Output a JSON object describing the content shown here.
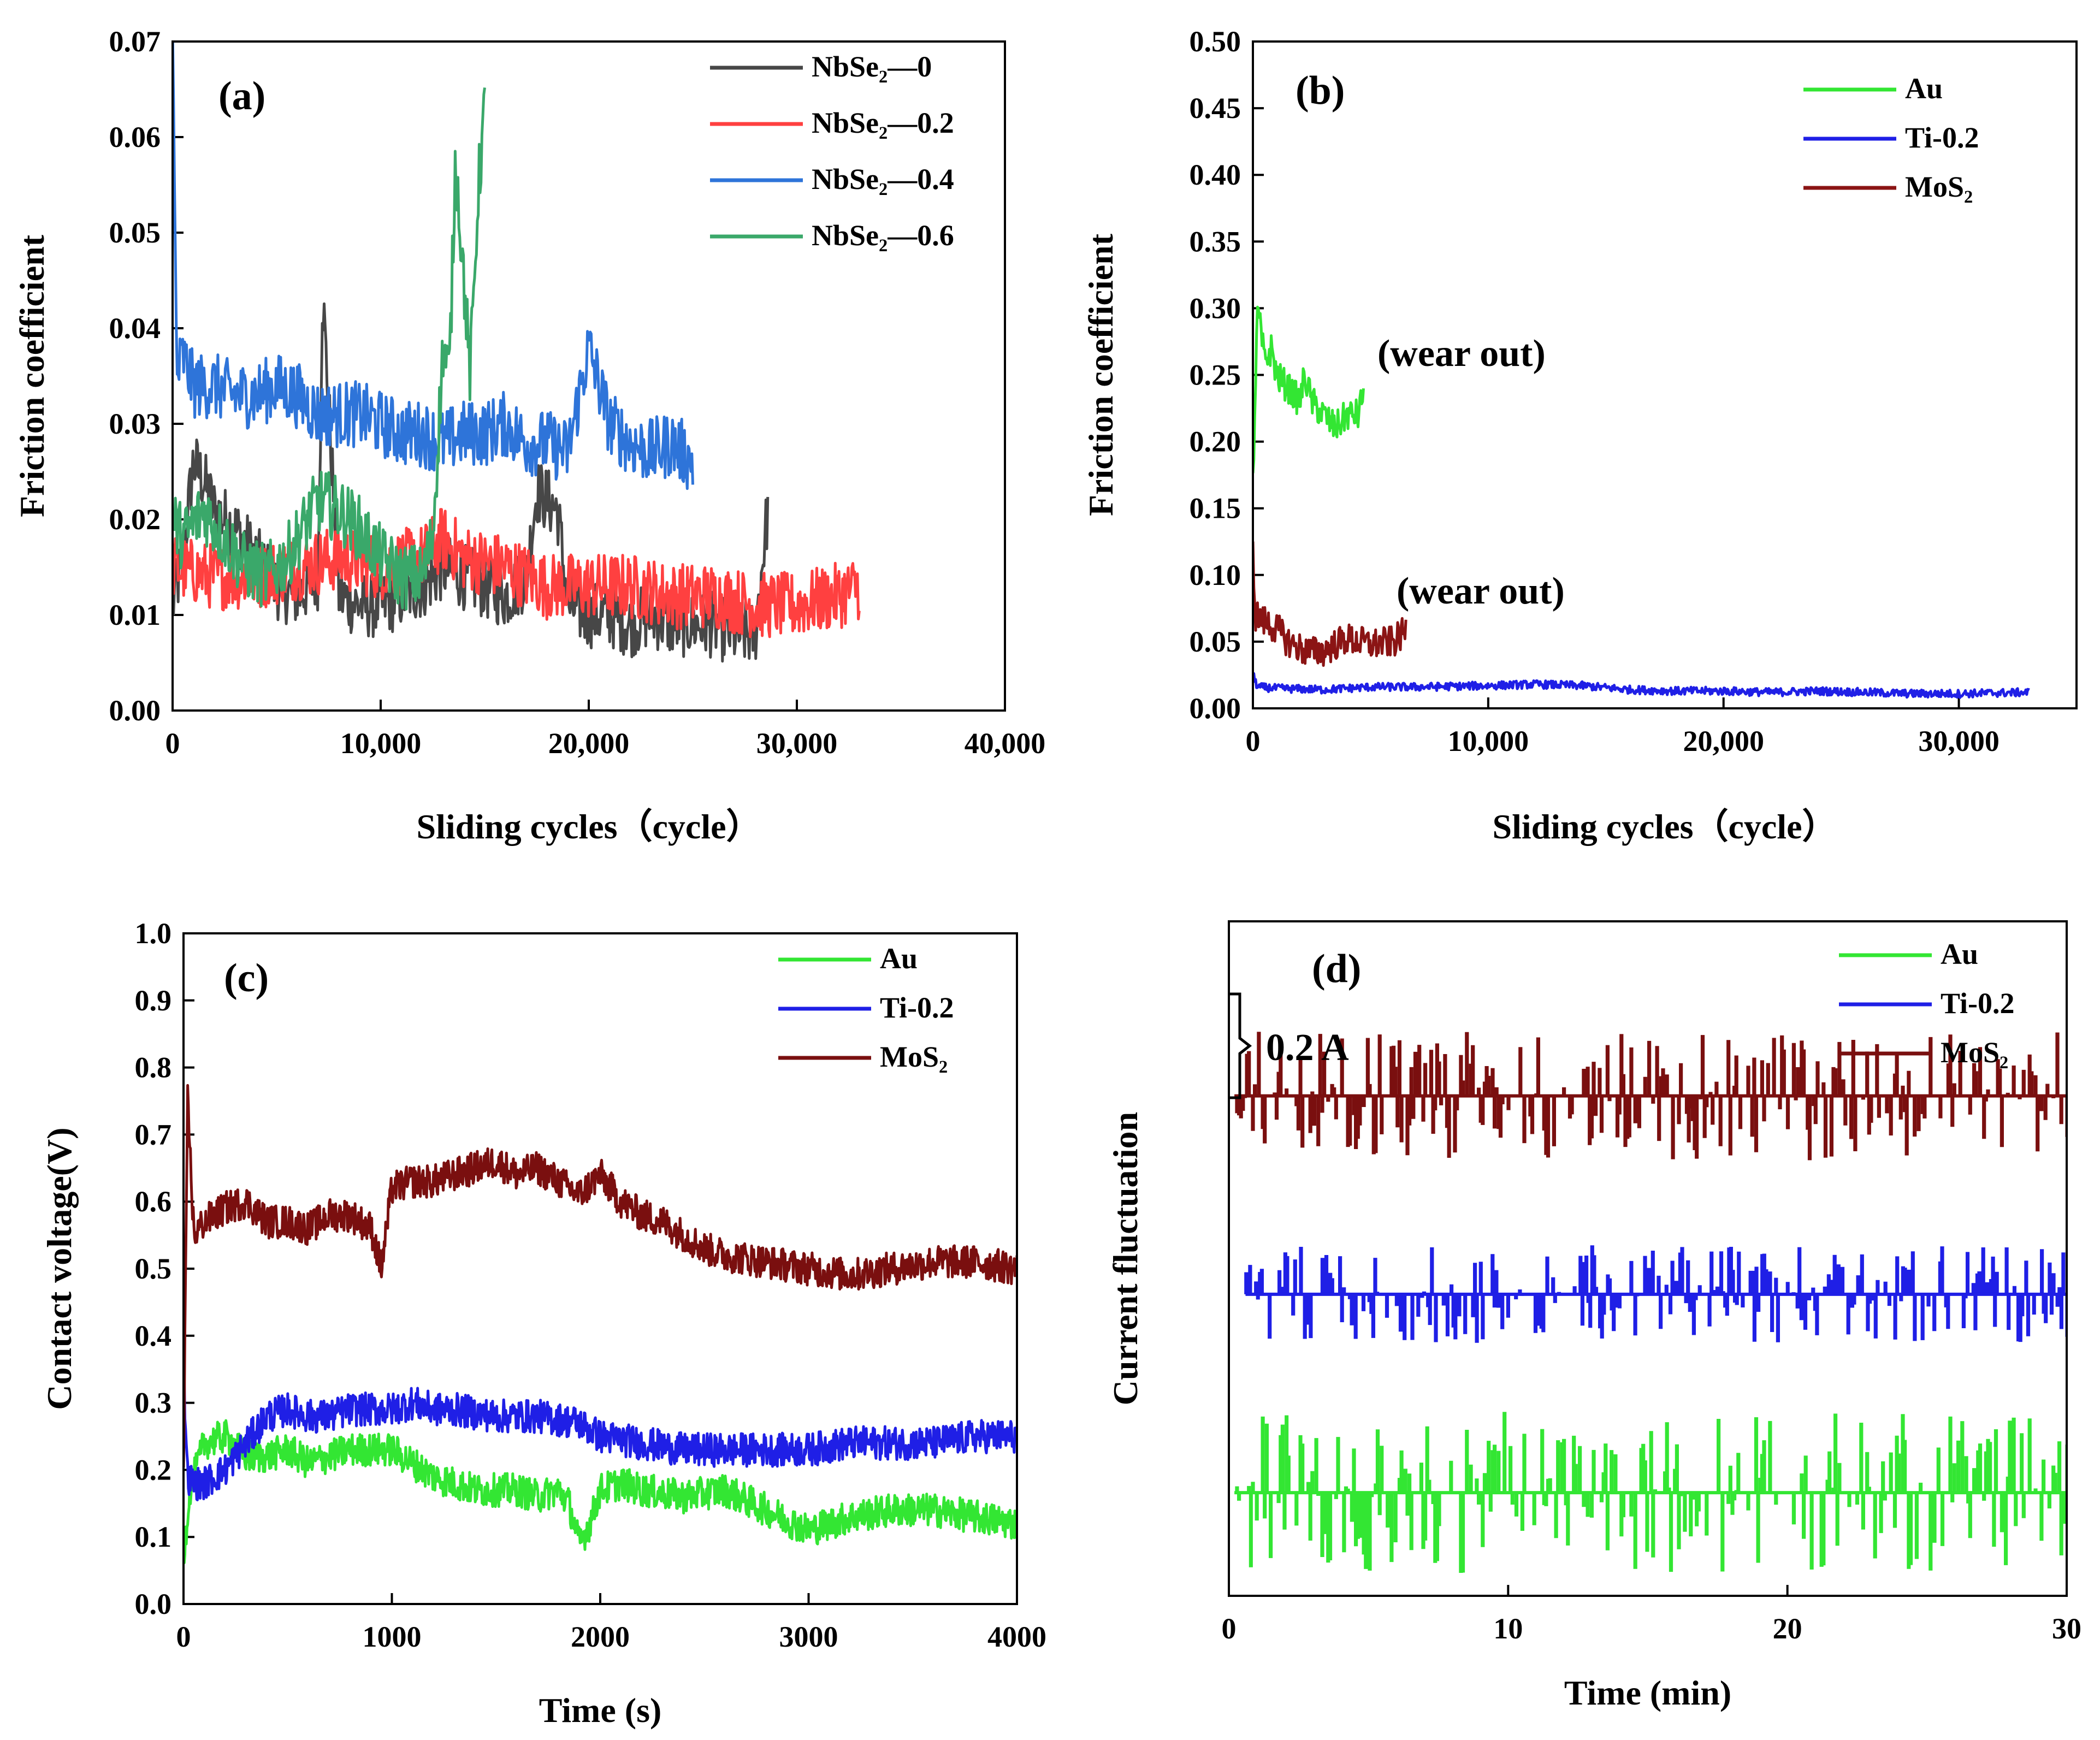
{
  "chart_data": [
    {
      "panel": "(a)",
      "type": "line",
      "xlabel": "Sliding cycles（cycle）",
      "ylabel": "Friction coefficient",
      "xlim": [
        0,
        40000
      ],
      "ylim": [
        0,
        0.07
      ],
      "xticks": [
        0,
        10000,
        20000,
        30000,
        40000
      ],
      "xtick_labels": [
        "0",
        "10,000",
        "20,000",
        "30,000",
        "40,000"
      ],
      "yticks": [
        0,
        0.01,
        0.02,
        0.03,
        0.04,
        0.05,
        0.06,
        0.07
      ],
      "ytick_labels": [
        "0.00",
        "0.01",
        "0.02",
        "0.03",
        "0.04",
        "0.05",
        "0.06",
        "0.07"
      ],
      "legend_position": "top-right",
      "series": [
        {
          "name": "NbSe₂—0",
          "color": "#474747",
          "x": [
            0,
            500,
            1000,
            1500,
            2000,
            3000,
            4000,
            5000,
            6000,
            7000,
            7200,
            8000,
            9000,
            10000,
            11000,
            12000,
            13000,
            14000,
            15000,
            16000,
            17000,
            17500,
            18500,
            19000,
            20000,
            21000,
            22000,
            23000,
            24000,
            25000,
            26000,
            27000,
            28000,
            28600
          ],
          "y": [
            0.011,
            0.016,
            0.026,
            0.024,
            0.021,
            0.019,
            0.016,
            0.013,
            0.012,
            0.014,
            0.044,
            0.012,
            0.011,
            0.011,
            0.012,
            0.013,
            0.015,
            0.014,
            0.013,
            0.012,
            0.014,
            0.023,
            0.021,
            0.011,
            0.01,
            0.01,
            0.009,
            0.01,
            0.009,
            0.009,
            0.009,
            0.008,
            0.008,
            0.021
          ]
        },
        {
          "name": "NbSe₂—0.2",
          "color": "#ff4040",
          "x": [
            0,
            2000,
            4000,
            6000,
            8000,
            10000,
            12000,
            13000,
            14000,
            16000,
            18000,
            20000,
            22000,
            24000,
            26000,
            28000,
            30000,
            32000,
            33000
          ],
          "y": [
            0.015,
            0.014,
            0.014,
            0.015,
            0.016,
            0.015,
            0.016,
            0.018,
            0.016,
            0.015,
            0.013,
            0.013,
            0.013,
            0.012,
            0.012,
            0.011,
            0.011,
            0.012,
            0.013
          ]
        },
        {
          "name": "NbSe₂—0.4",
          "color": "#2e74d9",
          "x": [
            0,
            200,
            500,
            1000,
            2000,
            3000,
            4000,
            5000,
            6000,
            7000,
            8000,
            9000,
            10000,
            11000,
            12000,
            13000,
            14000,
            15000,
            16000,
            17000,
            18000,
            19000,
            20000,
            21000,
            22000,
            23000,
            24000,
            25000
          ],
          "y": [
            0.07,
            0.035,
            0.037,
            0.034,
            0.034,
            0.033,
            0.033,
            0.034,
            0.033,
            0.031,
            0.031,
            0.031,
            0.03,
            0.029,
            0.029,
            0.028,
            0.029,
            0.029,
            0.03,
            0.028,
            0.028,
            0.027,
            0.038,
            0.03,
            0.028,
            0.027,
            0.028,
            0.026
          ]
        },
        {
          "name": "NbSe₂—0.6",
          "color": "#3aa86a",
          "x": [
            0,
            500,
            1500,
            2500,
            3500,
            4500,
            5500,
            6500,
            7000,
            8000,
            9000,
            10000,
            11000,
            12000,
            12500,
            13000,
            13300,
            13600,
            14000,
            14300,
            14700,
            15000
          ],
          "y": [
            0.02,
            0.018,
            0.021,
            0.018,
            0.015,
            0.014,
            0.016,
            0.02,
            0.022,
            0.021,
            0.019,
            0.016,
            0.014,
            0.014,
            0.018,
            0.038,
            0.035,
            0.058,
            0.045,
            0.035,
            0.055,
            0.063
          ]
        }
      ]
    },
    {
      "panel": "(b)",
      "type": "line",
      "xlabel": "Sliding cycles（cycle）",
      "ylabel": "Friction coefficient",
      "xlim": [
        0,
        35000
      ],
      "ylim": [
        0,
        0.5
      ],
      "xticks": [
        0,
        10000,
        20000,
        30000
      ],
      "xtick_labels": [
        "0",
        "10,000",
        "20,000",
        "30,000"
      ],
      "yticks": [
        0,
        0.05,
        0.1,
        0.15,
        0.2,
        0.25,
        0.3,
        0.35,
        0.4,
        0.45,
        0.5
      ],
      "ytick_labels": [
        "0.00",
        "0.05",
        "0.10",
        "0.15",
        "0.20",
        "0.25",
        "0.30",
        "0.35",
        "0.40",
        "0.45",
        "0.50"
      ],
      "legend_position": "top-right",
      "annotations": [
        "(wear out)",
        "(wear out)"
      ],
      "series": [
        {
          "name": "Au",
          "color": "#33e633",
          "x": [
            0,
            200,
            500,
            800,
            1000,
            1500,
            2000,
            2200,
            2500,
            3000,
            3500,
            4000,
            4500,
            4700
          ],
          "y": [
            0.17,
            0.3,
            0.26,
            0.27,
            0.25,
            0.24,
            0.23,
            0.25,
            0.23,
            0.22,
            0.21,
            0.22,
            0.22,
            0.24
          ]
        },
        {
          "name": "Ti-0.2",
          "color": "#1f1fe6",
          "x": [
            0,
            200,
            1000,
            3000,
            5000,
            7000,
            10000,
            12000,
            14000,
            16000,
            18000,
            20000,
            22000,
            24000,
            26000,
            28000,
            30000,
            33000
          ],
          "y": [
            0.025,
            0.016,
            0.015,
            0.014,
            0.016,
            0.016,
            0.017,
            0.018,
            0.017,
            0.014,
            0.013,
            0.013,
            0.012,
            0.013,
            0.012,
            0.011,
            0.011,
            0.012
          ]
        },
        {
          "name": "MoS₂",
          "color": "#8b1414",
          "x": [
            0,
            100,
            500,
            1000,
            1500,
            2000,
            2500,
            3000,
            3500,
            4000,
            4500,
            5000,
            5500,
            6000,
            6500
          ],
          "y": [
            0.12,
            0.07,
            0.065,
            0.06,
            0.05,
            0.045,
            0.042,
            0.043,
            0.048,
            0.052,
            0.05,
            0.048,
            0.049,
            0.05,
            0.058
          ]
        }
      ]
    },
    {
      "panel": "(c)",
      "type": "line",
      "xlabel": "Time (s)",
      "ylabel": "Contact voltage(V)",
      "xlim": [
        0,
        4000
      ],
      "ylim": [
        0,
        1.0
      ],
      "xticks": [
        0,
        1000,
        2000,
        3000,
        4000
      ],
      "xtick_labels": [
        "0",
        "1000",
        "2000",
        "3000",
        "4000"
      ],
      "yticks": [
        0,
        0.1,
        0.2,
        0.3,
        0.4,
        0.5,
        0.6,
        0.7,
        0.8,
        0.9,
        1.0
      ],
      "ytick_labels": [
        "0.0",
        "0.1",
        "0.2",
        "0.3",
        "0.4",
        "0.5",
        "0.6",
        "0.7",
        "0.8",
        "0.9",
        "1.0"
      ],
      "legend_position": "top-right",
      "series": [
        {
          "name": "Au",
          "color": "#33e633",
          "x": [
            0,
            30,
            100,
            200,
            300,
            400,
            500,
            600,
            700,
            800,
            900,
            1000,
            1100,
            1200,
            1300,
            1400,
            1500,
            1600,
            1700,
            1800,
            1850,
            1900,
            1950,
            2000,
            2100,
            2200,
            2400,
            2600,
            2800,
            3000,
            3200,
            3400,
            3600,
            3800,
            4000
          ],
          "y": [
            0.07,
            0.17,
            0.24,
            0.25,
            0.22,
            0.22,
            0.23,
            0.21,
            0.22,
            0.23,
            0.23,
            0.23,
            0.21,
            0.19,
            0.18,
            0.17,
            0.17,
            0.17,
            0.16,
            0.17,
            0.15,
            0.09,
            0.12,
            0.17,
            0.18,
            0.17,
            0.16,
            0.17,
            0.14,
            0.11,
            0.13,
            0.14,
            0.14,
            0.13,
            0.12
          ]
        },
        {
          "name": "Ti-0.2",
          "color": "#1f1fe6",
          "x": [
            0,
            20,
            50,
            100,
            200,
            300,
            400,
            500,
            600,
            700,
            800,
            900,
            1000,
            1100,
            1200,
            1300,
            1500,
            1700,
            1900,
            2000,
            2200,
            2400,
            2600,
            2800,
            3000,
            3200,
            3400,
            3600,
            3800,
            4000
          ],
          "y": [
            0.35,
            0.19,
            0.18,
            0.18,
            0.2,
            0.24,
            0.28,
            0.29,
            0.28,
            0.28,
            0.29,
            0.29,
            0.29,
            0.3,
            0.29,
            0.29,
            0.28,
            0.28,
            0.27,
            0.25,
            0.24,
            0.23,
            0.23,
            0.23,
            0.23,
            0.24,
            0.24,
            0.24,
            0.25,
            0.25
          ]
        },
        {
          "name": "MoS₂",
          "color": "#7a0f0f",
          "x": [
            0,
            20,
            50,
            100,
            200,
            300,
            400,
            500,
            600,
            700,
            800,
            900,
            950,
            1000,
            1100,
            1200,
            1300,
            1400,
            1500,
            1600,
            1700,
            1800,
            1900,
            2000,
            2100,
            2200,
            2300,
            2400,
            2500,
            2600,
            2800,
            3000,
            3200,
            3400,
            3600,
            3800,
            4000
          ],
          "y": [
            0.2,
            0.75,
            0.55,
            0.57,
            0.59,
            0.6,
            0.57,
            0.57,
            0.56,
            0.58,
            0.58,
            0.56,
            0.5,
            0.62,
            0.63,
            0.63,
            0.64,
            0.65,
            0.66,
            0.64,
            0.65,
            0.63,
            0.61,
            0.64,
            0.6,
            0.58,
            0.57,
            0.55,
            0.53,
            0.52,
            0.51,
            0.5,
            0.49,
            0.5,
            0.51,
            0.51,
            0.5
          ]
        }
      ]
    },
    {
      "panel": "(d)",
      "type": "line",
      "xlabel": "Time (min)",
      "ylabel": "Current fluctuation",
      "xlim": [
        0,
        30
      ],
      "xticks": [
        0,
        10,
        20,
        30
      ],
      "xtick_labels": [
        "0",
        "10",
        "20",
        "30"
      ],
      "legend_position": "top-right",
      "scale_bar_label": "0.2 A",
      "scale_bar_value_A": 0.2,
      "series": [
        {
          "name": "Au",
          "color": "#33e633",
          "baseline_A": 0.13,
          "fluctuation_A": 0.1,
          "x_start_min": 0.2
        },
        {
          "name": "Ti-0.2",
          "color": "#1f1fe6",
          "baseline_A": 0.38,
          "fluctuation_A": 0.06,
          "x_start_min": 0.6
        },
        {
          "name": "MoS₂",
          "color": "#7a0f0f",
          "baseline_A": 0.63,
          "fluctuation_A": 0.08,
          "x_start_min": 0.2
        }
      ]
    }
  ]
}
